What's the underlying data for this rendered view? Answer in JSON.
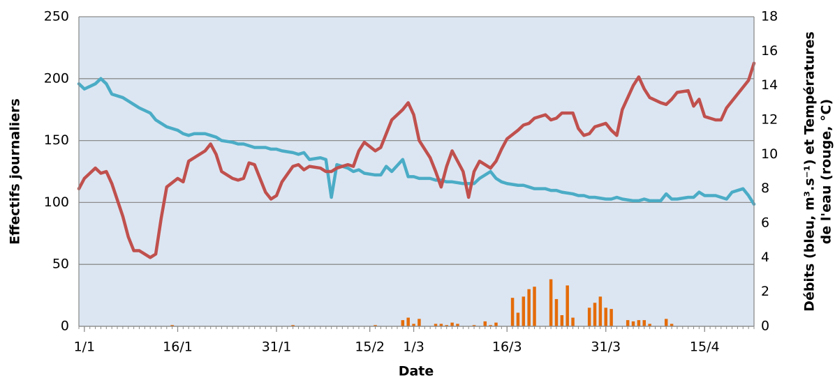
{
  "chart_data": {
    "type": "combo",
    "xlabel": "Date",
    "ylabel": "Effectifs journaliers",
    "y2label": [
      "Débits (bleu, m³.s⁻¹) et Températures",
      "de l'eau (rouge, °C)"
    ],
    "xlim": [
      0,
      123
    ],
    "xticks": [
      {
        "value": 1,
        "label": "1/1"
      },
      {
        "value": 18,
        "label": "16/1"
      },
      {
        "value": 36,
        "label": "31/1"
      },
      {
        "value": 53,
        "label": "15/2"
      },
      {
        "value": 61,
        "label": "1/3"
      },
      {
        "value": 78,
        "label": "16/3"
      },
      {
        "value": 96,
        "label": "31/3"
      },
      {
        "value": 114,
        "label": "15/4"
      }
    ],
    "ylim": [
      0,
      250
    ],
    "yticks": [
      0,
      50,
      100,
      150,
      200,
      250
    ],
    "y2lim": [
      0,
      18
    ],
    "y2ticks": [
      0,
      2,
      4,
      6,
      8,
      10,
      12,
      14,
      16,
      18
    ],
    "grid": true,
    "series": [
      {
        "type": "bar",
        "color": "#e46c0a",
        "x": [
          17,
          39,
          54,
          59,
          60,
          61,
          62,
          65,
          66,
          67,
          68,
          69,
          72,
          74,
          75,
          76,
          79,
          80,
          81,
          82,
          83,
          86,
          87,
          88,
          89,
          90,
          93,
          94,
          95,
          96,
          97,
          100,
          101,
          102,
          103,
          104,
          107,
          108
        ],
        "values": [
          1,
          1,
          1,
          5,
          7,
          2,
          6,
          2,
          2,
          1,
          3,
          2,
          1,
          4,
          1,
          3,
          23,
          11,
          24,
          30,
          32,
          38,
          22,
          9,
          33,
          7,
          15,
          19,
          24,
          15,
          14,
          5,
          4,
          5,
          5,
          2,
          6,
          2
        ]
      },
      {
        "type": "line",
        "axis": "y2",
        "color": "#4bacc6",
        "x": [
          0,
          1,
          3,
          4,
          5,
          6,
          8,
          9,
          10,
          11,
          13,
          14,
          15,
          16,
          18,
          19,
          20,
          21,
          23,
          24,
          25,
          26,
          28,
          29,
          30,
          31,
          32,
          34,
          35,
          36,
          37,
          39,
          40,
          41,
          42,
          44,
          45,
          46,
          47,
          49,
          50,
          51,
          52,
          54,
          55,
          56,
          57,
          59,
          60,
          61,
          62,
          64,
          65,
          66,
          67,
          68,
          70,
          71,
          72,
          73,
          75,
          76,
          77,
          78,
          80,
          81,
          82,
          83,
          85,
          86,
          87,
          88,
          90,
          91,
          92,
          93,
          94,
          96,
          97,
          98,
          99,
          101,
          102,
          103,
          104,
          106,
          107,
          108,
          109,
          111,
          112,
          113,
          114,
          116,
          117,
          118,
          119,
          121,
          122,
          123
        ],
        "values": [
          14.1,
          13.8,
          14.1,
          14.4,
          14.1,
          13.5,
          13.3,
          13.1,
          12.9,
          12.7,
          12.4,
          12.0,
          11.8,
          11.6,
          11.4,
          11.2,
          11.1,
          11.2,
          11.2,
          11.1,
          11.0,
          10.8,
          10.7,
          10.6,
          10.6,
          10.5,
          10.4,
          10.4,
          10.3,
          10.3,
          10.2,
          10.1,
          10.0,
          10.1,
          9.7,
          9.8,
          9.7,
          7.5,
          9.4,
          9.2,
          9.0,
          9.1,
          8.9,
          8.8,
          8.8,
          9.3,
          9.0,
          9.7,
          8.7,
          8.7,
          8.6,
          8.6,
          8.5,
          8.5,
          8.4,
          8.4,
          8.3,
          8.3,
          8.3,
          8.6,
          9.0,
          8.6,
          8.4,
          8.3,
          8.2,
          8.2,
          8.1,
          8.0,
          8.0,
          7.9,
          7.9,
          7.8,
          7.7,
          7.6,
          7.6,
          7.5,
          7.5,
          7.4,
          7.4,
          7.5,
          7.4,
          7.3,
          7.3,
          7.4,
          7.3,
          7.3,
          7.7,
          7.4,
          7.4,
          7.5,
          7.5,
          7.8,
          7.6,
          7.6,
          7.5,
          7.4,
          7.8,
          8.0,
          7.6,
          7.1
        ]
      },
      {
        "type": "line",
        "axis": "y2",
        "color": "#c0504d",
        "x": [
          0,
          1,
          3,
          4,
          5,
          6,
          8,
          9,
          10,
          11,
          13,
          14,
          15,
          16,
          18,
          19,
          20,
          21,
          23,
          24,
          25,
          26,
          28,
          29,
          30,
          31,
          32,
          34,
          35,
          36,
          37,
          39,
          40,
          41,
          42,
          44,
          45,
          46,
          47,
          49,
          50,
          51,
          52,
          54,
          55,
          56,
          57,
          59,
          60,
          61,
          62,
          64,
          65,
          66,
          67,
          68,
          70,
          71,
          72,
          73,
          75,
          76,
          77,
          78,
          80,
          81,
          82,
          83,
          85,
          86,
          87,
          88,
          90,
          91,
          92,
          93,
          94,
          96,
          97,
          98,
          99,
          101,
          102,
          103,
          104,
          106,
          107,
          108,
          109,
          111,
          112,
          113,
          114,
          116,
          117,
          118,
          119,
          121,
          122,
          123
        ],
        "values": [
          8.0,
          8.6,
          9.2,
          8.9,
          9.0,
          8.3,
          6.4,
          5.2,
          4.4,
          4.4,
          4.0,
          4.2,
          6.3,
          8.1,
          8.6,
          8.4,
          9.6,
          9.8,
          10.2,
          10.6,
          10.0,
          9.0,
          8.6,
          8.5,
          8.6,
          9.5,
          9.4,
          7.8,
          7.4,
          7.6,
          8.4,
          9.3,
          9.4,
          9.1,
          9.3,
          9.2,
          9.0,
          9.0,
          9.2,
          9.4,
          9.3,
          10.2,
          10.7,
          10.2,
          10.4,
          11.2,
          12.0,
          12.6,
          13.0,
          12.3,
          10.8,
          9.8,
          9.0,
          8.1,
          9.3,
          10.2,
          9.0,
          7.5,
          9.0,
          9.6,
          9.2,
          9.6,
          10.3,
          10.9,
          11.4,
          11.7,
          11.8,
          12.1,
          12.3,
          12.0,
          12.1,
          12.4,
          12.4,
          11.5,
          11.1,
          11.2,
          11.6,
          11.8,
          11.4,
          11.1,
          12.6,
          14.0,
          14.5,
          13.8,
          13.3,
          13.0,
          12.9,
          13.2,
          13.6,
          13.7,
          12.8,
          13.2,
          12.2,
          12.0,
          12.0,
          12.7,
          13.1,
          13.9,
          14.3,
          15.3
        ]
      }
    ]
  }
}
